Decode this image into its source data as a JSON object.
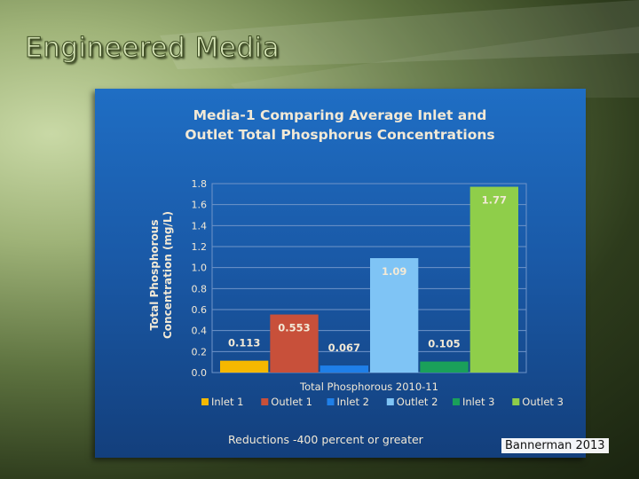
{
  "slide": {
    "title": "Engineered Media",
    "credit": "Bannerman 2013"
  },
  "colors": {
    "panel": "#1a5aa8",
    "title_text": "#d8e6b8"
  },
  "chart_data": {
    "type": "bar",
    "title_lines": [
      "Media-1 Comparing Average Inlet and",
      "Outlet Total Phosphorus Concentrations"
    ],
    "xlabel": "Total Phosphorous 2010-11",
    "ylabel_lines": [
      "Total Phosphorous",
      "Concentration (mg/L)"
    ],
    "ylim": [
      0,
      1.8
    ],
    "yticks": [
      "0.0",
      "0.2",
      "0.4",
      "0.6",
      "0.8",
      "1.0",
      "1.2",
      "1.4",
      "1.6",
      "1.8"
    ],
    "grid": true,
    "legend_position": "bottom",
    "footnote": "Reductions -400 percent or greater",
    "series": [
      {
        "name": "Inlet 1",
        "value": 0.113,
        "label": "0.113",
        "color": "#f5b800"
      },
      {
        "name": "Outlet 1",
        "value": 0.553,
        "label": "0.553",
        "color": "#c8503a"
      },
      {
        "name": "Inlet 2",
        "value": 0.067,
        "label": "0.067",
        "color": "#1f7fe8"
      },
      {
        "name": "Outlet 2",
        "value": 1.09,
        "label": "1.09",
        "color": "#7fc4f5"
      },
      {
        "name": "Inlet 3",
        "value": 0.105,
        "label": "0.105",
        "color": "#1aa05a"
      },
      {
        "name": "Outlet 3",
        "value": 1.77,
        "label": "1.77",
        "color": "#8fce4a"
      }
    ]
  }
}
